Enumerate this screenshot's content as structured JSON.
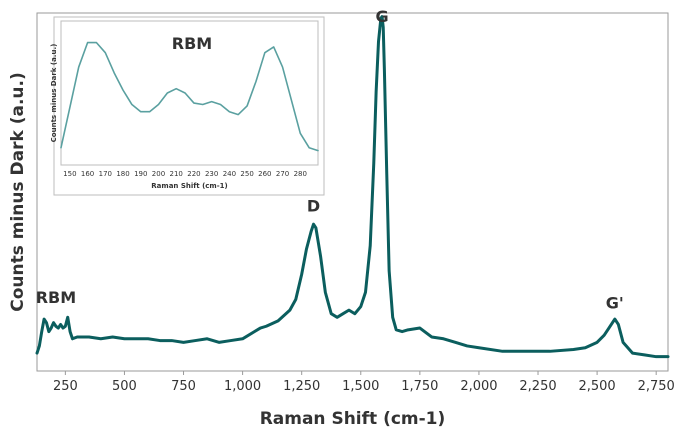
{
  "chart_data": [
    {
      "type": "line",
      "xlabel": "Raman Shift (cm-1)",
      "ylabel": "Counts minus Dark (a.u.)",
      "xlim": [
        130,
        2800
      ],
      "ylim": [
        0,
        1.0
      ],
      "xticks": [
        250,
        500,
        750,
        1000,
        1250,
        1500,
        1750,
        2000,
        2250,
        2500,
        2750
      ],
      "xtick_labels": [
        "250",
        "500",
        "750",
        "1,000",
        "1,250",
        "1,500",
        "1,750",
        "2,000",
        "2,250",
        "2,500",
        "2,750"
      ],
      "grid": false,
      "color": "#0b5e5e",
      "annotations": [
        {
          "text": "RBM",
          "x": 210,
          "y": 0.19
        },
        {
          "text": "D",
          "x": 1300,
          "y": 0.445
        },
        {
          "text": "G",
          "x": 1590,
          "y": 0.975
        },
        {
          "text": "G'",
          "x": 2575,
          "y": 0.175
        }
      ],
      "series": [
        {
          "x": [
            130,
            140,
            150,
            160,
            170,
            180,
            190,
            200,
            210,
            220,
            230,
            240,
            250,
            260,
            270,
            280,
            300,
            350,
            400,
            450,
            500,
            550,
            600,
            650,
            700,
            750,
            800,
            850,
            900,
            950,
            1000,
            1050,
            1075,
            1100,
            1150,
            1200,
            1225,
            1250,
            1270,
            1290,
            1300,
            1310,
            1330,
            1350,
            1375,
            1400,
            1425,
            1450,
            1475,
            1500,
            1520,
            1540,
            1555,
            1565,
            1575,
            1585,
            1590,
            1595,
            1600,
            1610,
            1620,
            1635,
            1650,
            1675,
            1700,
            1750,
            1800,
            1850,
            1900,
            1950,
            2000,
            2100,
            2200,
            2300,
            2400,
            2450,
            2500,
            2530,
            2550,
            2575,
            2590,
            2610,
            2650,
            2700,
            2750,
            2800
          ],
          "y": [
            0.05,
            0.07,
            0.11,
            0.145,
            0.135,
            0.11,
            0.12,
            0.135,
            0.125,
            0.12,
            0.13,
            0.12,
            0.125,
            0.15,
            0.11,
            0.09,
            0.095,
            0.095,
            0.09,
            0.095,
            0.09,
            0.09,
            0.09,
            0.085,
            0.085,
            0.08,
            0.085,
            0.09,
            0.08,
            0.085,
            0.09,
            0.11,
            0.12,
            0.125,
            0.14,
            0.17,
            0.2,
            0.27,
            0.34,
            0.39,
            0.41,
            0.4,
            0.32,
            0.22,
            0.16,
            0.15,
            0.16,
            0.17,
            0.16,
            0.18,
            0.22,
            0.35,
            0.58,
            0.78,
            0.92,
            0.985,
            0.99,
            0.96,
            0.84,
            0.55,
            0.28,
            0.15,
            0.115,
            0.11,
            0.115,
            0.12,
            0.095,
            0.09,
            0.08,
            0.07,
            0.065,
            0.055,
            0.055,
            0.055,
            0.06,
            0.065,
            0.08,
            0.1,
            0.12,
            0.145,
            0.13,
            0.08,
            0.05,
            0.045,
            0.04,
            0.04
          ]
        }
      ]
    },
    {
      "type": "line",
      "title": "RBM",
      "xlabel": "Raman Shift (cm-1)",
      "ylabel": "Counts minus Dark (a.u.)",
      "xlim": [
        145,
        290
      ],
      "ylim": [
        0,
        1.0
      ],
      "xticks": [
        150,
        160,
        170,
        180,
        190,
        200,
        210,
        220,
        230,
        240,
        250,
        260,
        270,
        280
      ],
      "grid": false,
      "color": "#5aa0a0",
      "series": [
        {
          "x": [
            145,
            150,
            155,
            160,
            165,
            170,
            175,
            180,
            185,
            190,
            195,
            200,
            205,
            210,
            215,
            220,
            225,
            230,
            235,
            240,
            245,
            250,
            255,
            260,
            265,
            270,
            275,
            280,
            285,
            290
          ],
          "y": [
            0.12,
            0.4,
            0.68,
            0.85,
            0.85,
            0.78,
            0.64,
            0.52,
            0.42,
            0.37,
            0.37,
            0.42,
            0.5,
            0.53,
            0.5,
            0.43,
            0.42,
            0.44,
            0.42,
            0.37,
            0.35,
            0.41,
            0.58,
            0.78,
            0.82,
            0.68,
            0.45,
            0.22,
            0.12,
            0.1
          ]
        }
      ]
    }
  ]
}
